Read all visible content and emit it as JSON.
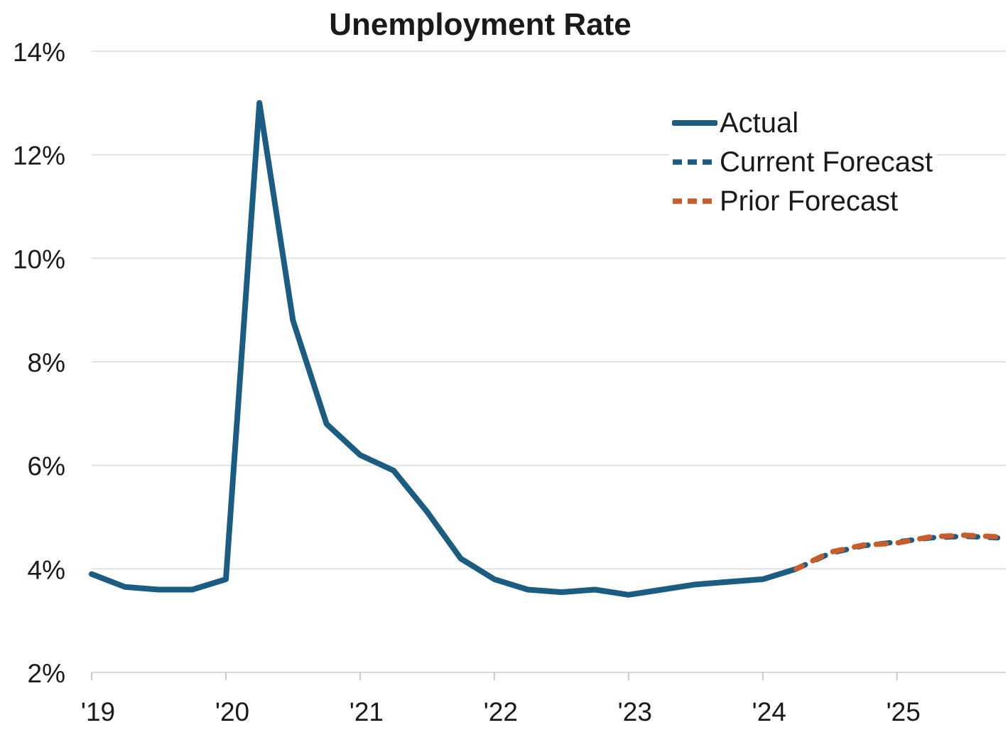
{
  "chart_data": {
    "type": "line",
    "title": "Unemployment Rate",
    "xlabel": "",
    "ylabel": "",
    "y_unit": "%",
    "grid": "horizontal",
    "legend_position": "upper-right",
    "ylim": [
      2,
      14
    ],
    "xlim": [
      2019,
      2025.79
    ],
    "y_ticks": [
      2,
      4,
      6,
      8,
      10,
      12,
      14
    ],
    "y_tick_labels": [
      "2%",
      "4%",
      "6%",
      "8%",
      "10%",
      "12%",
      "14%"
    ],
    "x_ticks": [
      2019,
      2020,
      2021,
      2022,
      2023,
      2024,
      2025
    ],
    "x_tick_labels": [
      "'19",
      "'20",
      "'21",
      "'22",
      "'23",
      "'24",
      "'25"
    ],
    "series": [
      {
        "name": "Actual",
        "style": "solid",
        "color": "#1b5d82",
        "x": [
          2019,
          2019.25,
          2019.5,
          2019.75,
          2020,
          2020.25,
          2020.5,
          2020.75,
          2021,
          2021.25,
          2021.5,
          2021.75,
          2022,
          2022.25,
          2022.5,
          2022.75,
          2023,
          2023.25,
          2023.5,
          2023.75,
          2024,
          2024.25
        ],
        "values": [
          3.9,
          3.65,
          3.6,
          3.6,
          3.8,
          13,
          8.8,
          6.8,
          6.2,
          5.9,
          5.1,
          4.2,
          3.8,
          3.6,
          3.55,
          3.6,
          3.5,
          3.6,
          3.7,
          3.75,
          3.8,
          4
        ]
      },
      {
        "name": "Current Forecast",
        "style": "dashed",
        "color": "#1b5d82",
        "x": [
          2024.25,
          2024.5,
          2024.75,
          2025,
          2025.25,
          2025.5,
          2025.75
        ],
        "values": [
          4,
          4.3,
          4.45,
          4.52,
          4.6,
          4.63,
          4.6
        ]
      },
      {
        "name": "Prior Forecast",
        "style": "dashed",
        "color": "#c85c2b",
        "x": [
          2024.25,
          2024.5,
          2024.75,
          2025,
          2025.25,
          2025.5,
          2025.75,
          2025.79
        ],
        "values": [
          4,
          4.32,
          4.46,
          4.5,
          4.62,
          4.65,
          4.62,
          4.6
        ]
      }
    ]
  }
}
